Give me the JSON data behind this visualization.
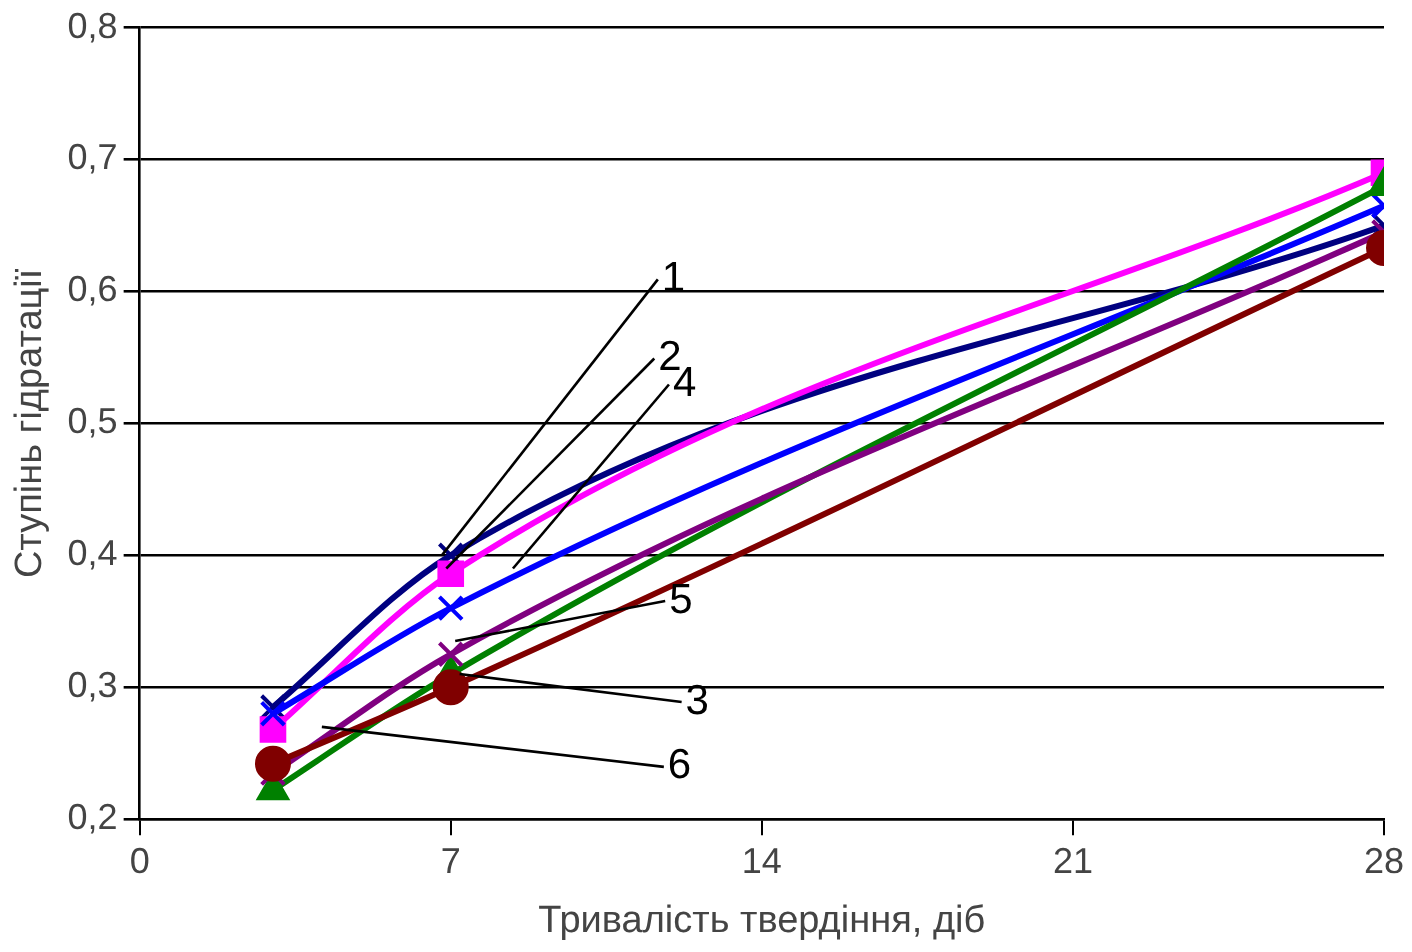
{
  "chart_data": {
    "type": "line",
    "xlabel": "Тривалість твердіння, діб",
    "ylabel": "Ступінь гідратації",
    "x": [
      3,
      7,
      28
    ],
    "series": [
      {
        "color": "#000080",
        "marker": "cross",
        "values": [
          0.285,
          0.4,
          0.65
        ]
      },
      {
        "color": "#ff00ff",
        "marker": "square",
        "values": [
          0.268,
          0.386,
          0.69
        ]
      },
      {
        "color": "#0000ff",
        "marker": "cross",
        "values": [
          0.28,
          0.36,
          0.665
        ]
      },
      {
        "color": "#008000",
        "marker": "triangle",
        "values": [
          0.222,
          0.31,
          0.68
        ]
      },
      {
        "color": "#800080",
        "marker": "cross",
        "values": [
          0.235,
          0.325,
          0.645
        ]
      },
      {
        "color": "#800000",
        "marker": "circle",
        "values": [
          0.242,
          0.3,
          0.633
        ]
      }
    ],
    "annotations": [
      {
        "text": "1",
        "x": 6.8,
        "y": 0.4
      },
      {
        "text": "2",
        "x": 6.9,
        "y": 0.39
      },
      {
        "text": "4",
        "x": 8.4,
        "y": 0.39
      },
      {
        "text": "5",
        "x": 7.1,
        "y": 0.335
      },
      {
        "text": "3",
        "x": 7.2,
        "y": 0.31
      },
      {
        "text": "6",
        "x": 4.1,
        "y": 0.27
      }
    ],
    "xlim": [
      0,
      28
    ],
    "xticks": [
      0,
      7,
      14,
      21,
      28
    ],
    "ylim": [
      0.2,
      0.8
    ],
    "yticks": [
      {
        "value": 0.2,
        "label": "0,2"
      },
      {
        "value": 0.3,
        "label": "0,3"
      },
      {
        "value": 0.4,
        "label": "0,4"
      },
      {
        "value": 0.5,
        "label": "0,5"
      },
      {
        "value": 0.6,
        "label": "0,6"
      },
      {
        "value": 0.7,
        "label": "0,7"
      },
      {
        "value": 0.8,
        "label": "0,8"
      }
    ],
    "grid": "y",
    "legend": false,
    "line_style": "solid"
  }
}
